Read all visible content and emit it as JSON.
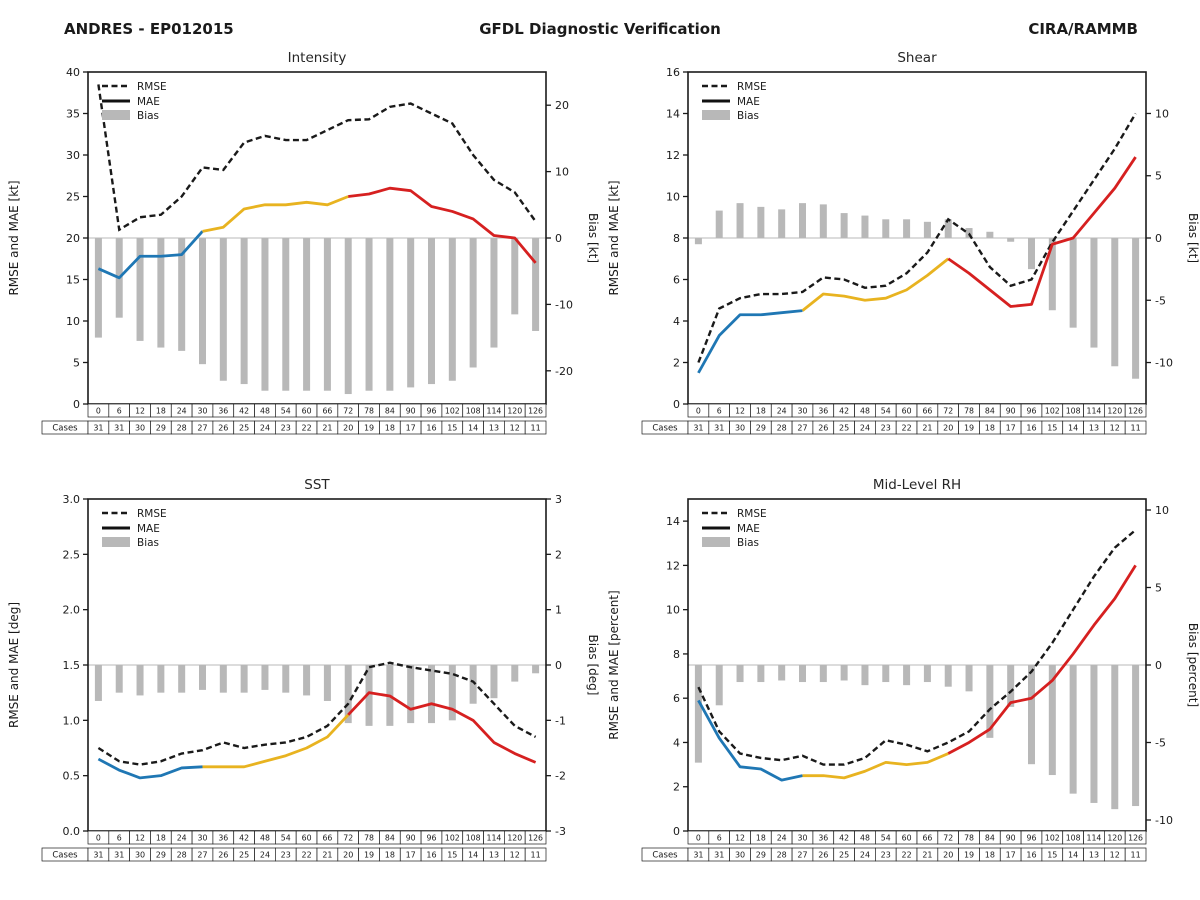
{
  "header": {
    "storm": "ANDRES - EP012015",
    "title": "GFDL Diagnostic Verification",
    "credit": "CIRA/RAMMB"
  },
  "legend": {
    "rmse": "RMSE",
    "mae": "MAE",
    "bias": "Bias"
  },
  "cases_label": "Cases",
  "colors": {
    "dashed": "#1a1a1a",
    "blue": "#1f77b4",
    "yellow": "#e8b320",
    "red": "#d62020",
    "bar": "#b8b8b8",
    "zero_line": "#c8c8c8",
    "frame": "#1a1a1a"
  },
  "x_hours": [
    0,
    6,
    12,
    18,
    24,
    30,
    36,
    42,
    48,
    54,
    60,
    66,
    72,
    78,
    84,
    90,
    96,
    102,
    108,
    114,
    120,
    126
  ],
  "cases": [
    31,
    31,
    30,
    29,
    28,
    27,
    26,
    25,
    24,
    23,
    22,
    21,
    20,
    19,
    18,
    17,
    16,
    15,
    14,
    13,
    12,
    11
  ],
  "segments": {
    "blue": [
      0,
      5
    ],
    "yellow": [
      5,
      12
    ],
    "red": [
      12,
      21
    ]
  },
  "chart_data": [
    {
      "type": "line+bar",
      "title": "Intensity",
      "ylabel_left": "RMSE and MAE [kt]",
      "ylabel_right": "Bias [kt]",
      "ylim_left": [
        0,
        40
      ],
      "yticks_left": [
        0,
        5,
        10,
        15,
        20,
        25,
        30,
        35,
        40
      ],
      "decimals_left": 0,
      "ylim_right": [
        -25,
        25
      ],
      "yticks_right": [
        -20,
        -10,
        0,
        10,
        20
      ],
      "decimals_right": 0,
      "rmse": [
        38.5,
        21.0,
        22.5,
        22.8,
        25.0,
        28.5,
        28.2,
        31.5,
        32.3,
        31.8,
        31.8,
        33.0,
        34.2,
        34.3,
        35.8,
        36.2,
        35.0,
        33.8,
        30.0,
        27.0,
        25.5,
        22.0
      ],
      "mae": [
        16.3,
        15.2,
        17.8,
        17.8,
        18.0,
        20.8,
        21.3,
        23.5,
        24.0,
        24.0,
        24.3,
        24.0,
        25.0,
        25.3,
        26.0,
        25.7,
        23.8,
        23.2,
        22.3,
        20.3,
        20.0,
        17.0
      ],
      "bias": [
        -15.0,
        -12.0,
        -15.5,
        -16.5,
        -17.0,
        -19.0,
        -21.5,
        -22.0,
        -23.0,
        -23.0,
        -23.0,
        -23.0,
        -23.5,
        -23.0,
        -23.0,
        -22.5,
        -22.0,
        -21.5,
        -19.5,
        -16.5,
        -11.5,
        -14.0
      ]
    },
    {
      "type": "line+bar",
      "title": "Shear",
      "ylabel_left": "RMSE and MAE [kt]",
      "ylabel_right": "Bias [kt]",
      "ylim_left": [
        0,
        16
      ],
      "yticks_left": [
        0,
        2,
        4,
        6,
        8,
        10,
        12,
        14,
        16
      ],
      "decimals_left": 0,
      "ylim_right": [
        -13.33,
        13.33
      ],
      "yticks_right": [
        -10,
        -5,
        0,
        5,
        10
      ],
      "decimals_right": 0,
      "rmse": [
        2.0,
        4.6,
        5.1,
        5.3,
        5.3,
        5.4,
        6.1,
        6.0,
        5.6,
        5.7,
        6.3,
        7.3,
        8.9,
        8.2,
        6.6,
        5.7,
        6.0,
        7.8,
        9.3,
        10.8,
        12.3,
        14.0
      ],
      "mae": [
        1.5,
        3.3,
        4.3,
        4.3,
        4.4,
        4.5,
        5.3,
        5.2,
        5.0,
        5.1,
        5.5,
        6.2,
        7.0,
        6.3,
        5.5,
        4.7,
        4.8,
        7.7,
        8.0,
        9.2,
        10.4,
        11.9
      ],
      "bias": [
        -0.5,
        2.2,
        2.8,
        2.5,
        2.3,
        2.8,
        2.7,
        2.0,
        1.8,
        1.5,
        1.5,
        1.3,
        1.5,
        0.8,
        0.5,
        -0.3,
        -2.5,
        -5.8,
        -7.2,
        -8.8,
        -10.3,
        -11.3
      ]
    },
    {
      "type": "line+bar",
      "title": "SST",
      "ylabel_left": "RMSE and MAE [deg]",
      "ylabel_right": "Bias [deg]",
      "ylim_left": [
        0,
        3
      ],
      "yticks_left": [
        0,
        0.5,
        1,
        1.5,
        2,
        2.5,
        3
      ],
      "decimals_left": 1,
      "ylim_right": [
        -3,
        3
      ],
      "yticks_right": [
        -3,
        -2,
        -1,
        0,
        1,
        2,
        3
      ],
      "decimals_right": 0,
      "rmse": [
        0.75,
        0.63,
        0.6,
        0.63,
        0.7,
        0.73,
        0.8,
        0.75,
        0.78,
        0.8,
        0.85,
        0.95,
        1.15,
        1.48,
        1.52,
        1.48,
        1.45,
        1.42,
        1.35,
        1.15,
        0.95,
        0.85
      ],
      "mae": [
        0.65,
        0.55,
        0.48,
        0.5,
        0.57,
        0.58,
        0.58,
        0.58,
        0.63,
        0.68,
        0.75,
        0.85,
        1.05,
        1.25,
        1.22,
        1.1,
        1.15,
        1.1,
        1.0,
        0.8,
        0.7,
        0.62
      ],
      "bias": [
        -0.65,
        -0.5,
        -0.55,
        -0.5,
        -0.5,
        -0.45,
        -0.5,
        -0.5,
        -0.45,
        -0.5,
        -0.55,
        -0.65,
        -1.05,
        -1.1,
        -1.1,
        -1.05,
        -1.05,
        -1.0,
        -0.7,
        -0.6,
        -0.3,
        -0.15
      ]
    },
    {
      "type": "line+bar",
      "title": "Mid-Level RH",
      "ylabel_left": "RMSE and MAE [percent]",
      "ylabel_right": "Bias [percent]",
      "ylim_left": [
        0,
        15
      ],
      "yticks_left": [
        0,
        2,
        4,
        6,
        8,
        10,
        12,
        14
      ],
      "decimals_left": 0,
      "ylim_right": [
        -10.71,
        10.71
      ],
      "yticks_right": [
        -10,
        -5,
        0,
        5,
        10
      ],
      "decimals_right": 0,
      "rmse": [
        6.5,
        4.5,
        3.5,
        3.3,
        3.2,
        3.4,
        3.0,
        3.0,
        3.3,
        4.1,
        3.9,
        3.6,
        4.0,
        4.5,
        5.5,
        6.3,
        7.2,
        8.5,
        10.0,
        11.5,
        12.8,
        13.6
      ],
      "mae": [
        5.9,
        4.2,
        2.9,
        2.8,
        2.3,
        2.5,
        2.5,
        2.4,
        2.7,
        3.1,
        3.0,
        3.1,
        3.5,
        4.0,
        4.6,
        5.8,
        6.0,
        6.8,
        8.0,
        9.3,
        10.5,
        12.0
      ],
      "bias": [
        -6.3,
        -2.6,
        -1.1,
        -1.1,
        -1.0,
        -1.1,
        -1.1,
        -1.0,
        -1.3,
        -1.1,
        -1.3,
        -1.1,
        -1.4,
        -1.7,
        -4.7,
        -2.7,
        -6.4,
        -7.1,
        -8.3,
        -8.9,
        -9.3,
        -9.1
      ]
    }
  ]
}
